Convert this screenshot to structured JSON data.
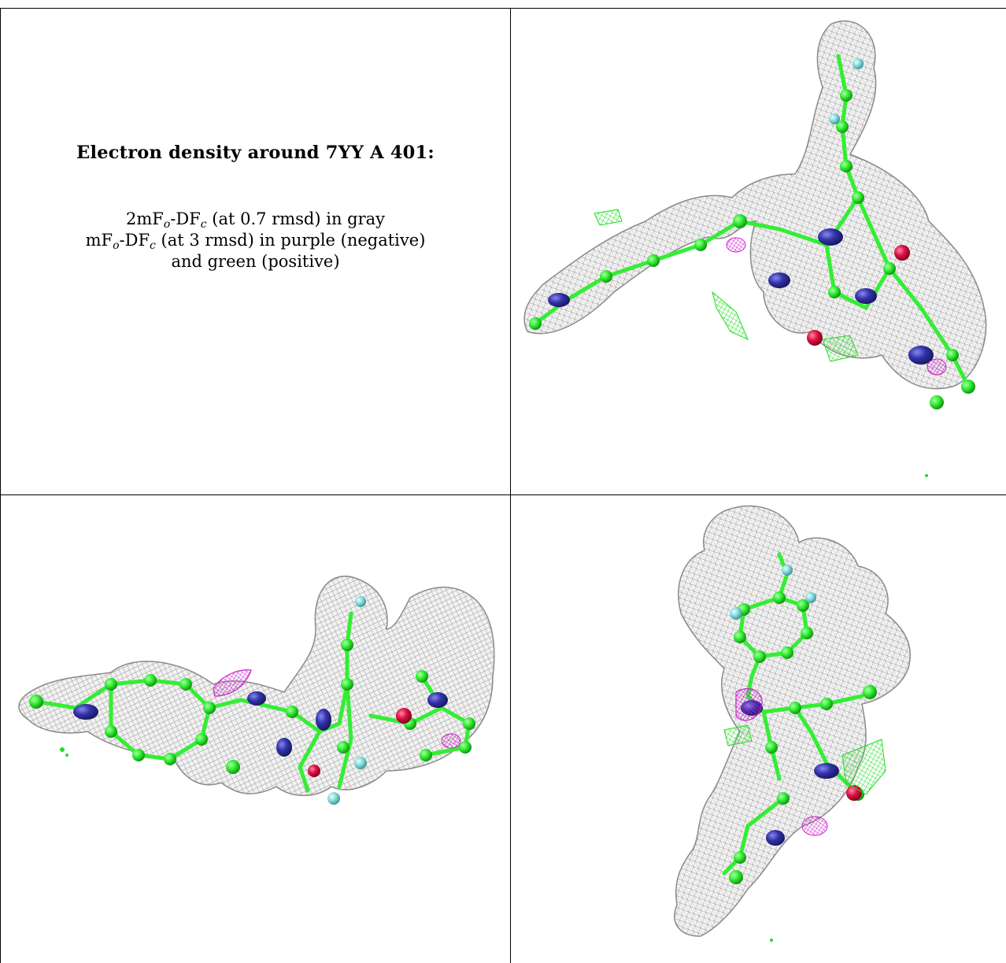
{
  "title": "Electron density around 7YY A 401:",
  "legend": {
    "line1": {
      "a": "2mF",
      "a_sub": "o",
      "b": "-DF",
      "b_sub": "c",
      "rest": " (at 0.7 rmsd) in gray"
    },
    "line2": {
      "a": "mF",
      "a_sub": "o",
      "b": "-DF",
      "b_sub": "c",
      "rest": " (at 3 rmsd) in purple (negative)"
    },
    "line3": "and green (positive)"
  },
  "colors": {
    "mesh_gray": "#9a9a9a",
    "carbon_green": "#33ee33",
    "nitrogen_blue": "#3333aa",
    "oxygen_red": "#dd1144",
    "fluorine_cyan": "#88dddd",
    "diff_positive_green": "#22dd22",
    "diff_negative_purple": "#cc22cc"
  }
}
